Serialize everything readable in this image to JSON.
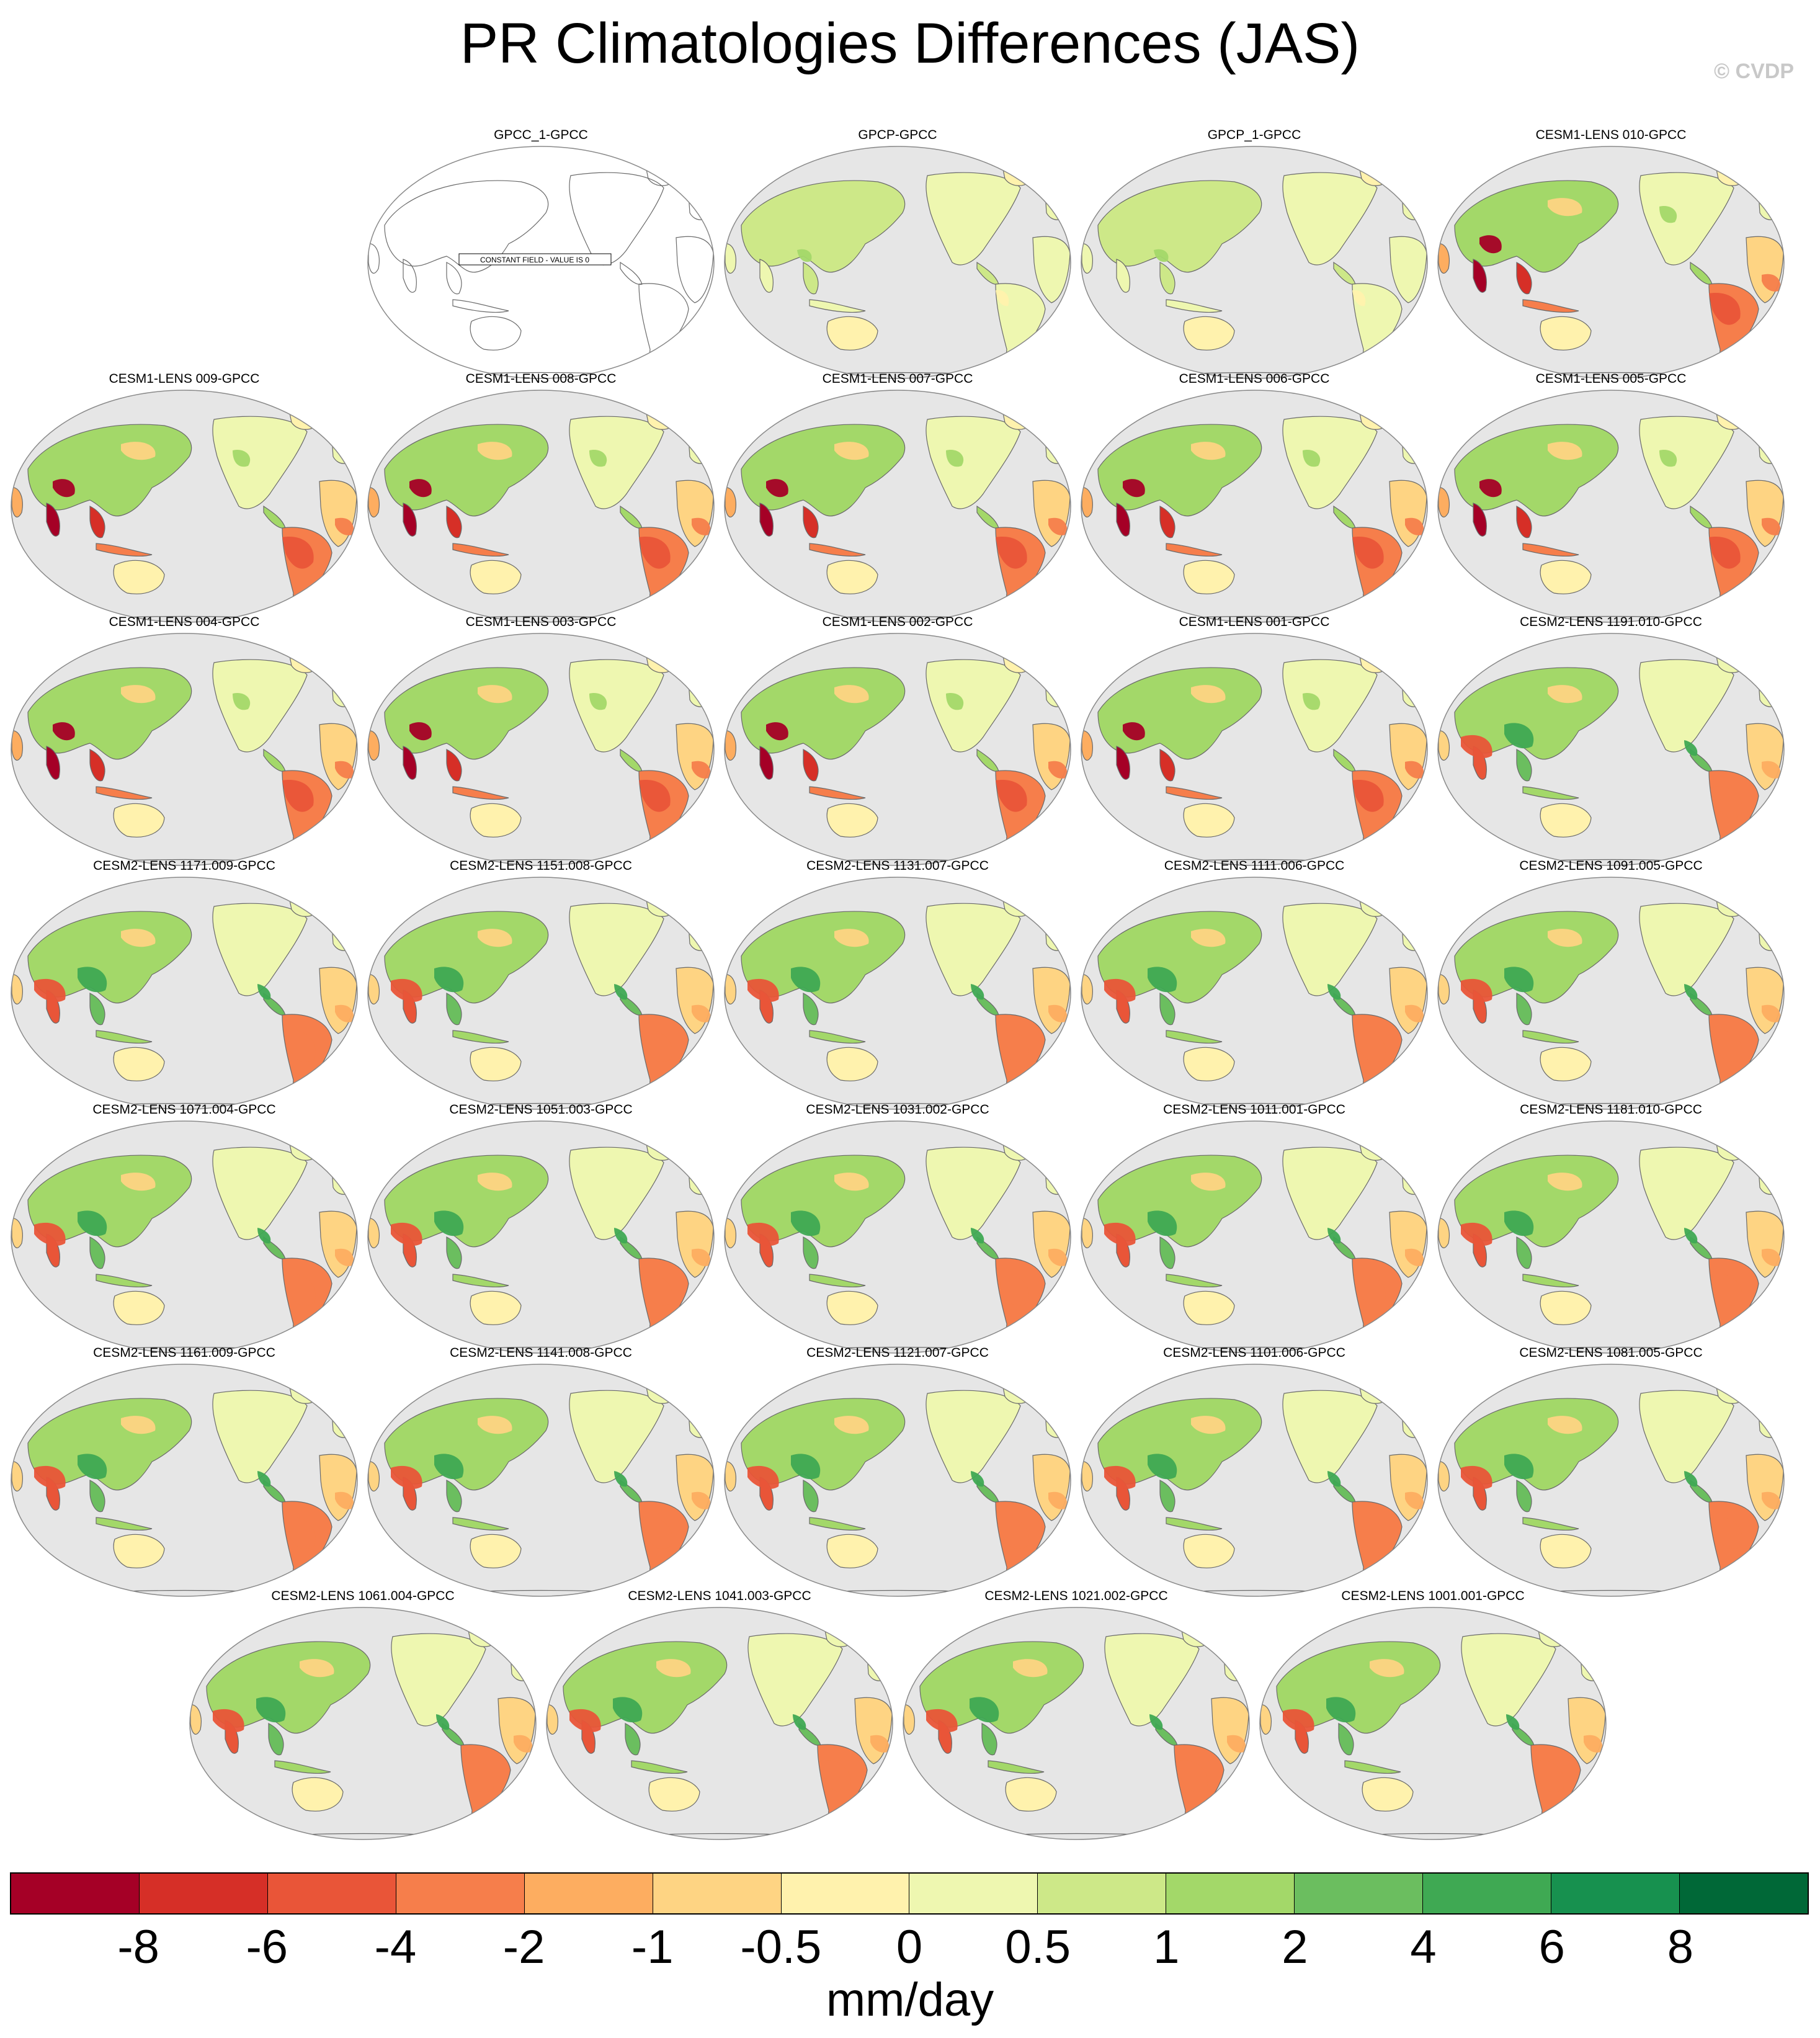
{
  "title": "PR Climatologies Differences (JAS)",
  "copyright": "© CVDP",
  "panels": [
    {
      "title": "GPCC_1-GPCC",
      "constant": true,
      "constant_label": "CONSTANT FIELD - VALUE IS 0"
    },
    {
      "title": "GPCP-GPCC",
      "style": "obs"
    },
    {
      "title": "GPCP_1-GPCC",
      "style": "obs"
    },
    {
      "title": "CESM1-LENS 010-GPCC",
      "style": "cesm1"
    },
    {
      "title": "CESM1-LENS 009-GPCC",
      "style": "cesm1"
    },
    {
      "title": "CESM1-LENS 008-GPCC",
      "style": "cesm1"
    },
    {
      "title": "CESM1-LENS 007-GPCC",
      "style": "cesm1"
    },
    {
      "title": "CESM1-LENS 006-GPCC",
      "style": "cesm1"
    },
    {
      "title": "CESM1-LENS 005-GPCC",
      "style": "cesm1"
    },
    {
      "title": "CESM1-LENS 004-GPCC",
      "style": "cesm1"
    },
    {
      "title": "CESM1-LENS 003-GPCC",
      "style": "cesm1"
    },
    {
      "title": "CESM1-LENS 002-GPCC",
      "style": "cesm1"
    },
    {
      "title": "CESM1-LENS 001-GPCC",
      "style": "cesm1"
    },
    {
      "title": "CESM2-LENS 1191.010-GPCC",
      "style": "cesm2"
    },
    {
      "title": "CESM2-LENS 1171.009-GPCC",
      "style": "cesm2"
    },
    {
      "title": "CESM2-LENS 1151.008-GPCC",
      "style": "cesm2"
    },
    {
      "title": "CESM2-LENS 1131.007-GPCC",
      "style": "cesm2"
    },
    {
      "title": "CESM2-LENS 1111.006-GPCC",
      "style": "cesm2"
    },
    {
      "title": "CESM2-LENS 1091.005-GPCC",
      "style": "cesm2"
    },
    {
      "title": "CESM2-LENS 1071.004-GPCC",
      "style": "cesm2"
    },
    {
      "title": "CESM2-LENS 1051.003-GPCC",
      "style": "cesm2"
    },
    {
      "title": "CESM2-LENS 1031.002-GPCC",
      "style": "cesm2"
    },
    {
      "title": "CESM2-LENS 1011.001-GPCC",
      "style": "cesm2"
    },
    {
      "title": "CESM2-LENS 1181.010-GPCC",
      "style": "cesm2"
    },
    {
      "title": "CESM2-LENS 1161.009-GPCC",
      "style": "cesm2"
    },
    {
      "title": "CESM2-LENS 1141.008-GPCC",
      "style": "cesm2"
    },
    {
      "title": "CESM2-LENS 1121.007-GPCC",
      "style": "cesm2"
    },
    {
      "title": "CESM2-LENS 1101.006-GPCC",
      "style": "cesm2"
    },
    {
      "title": "CESM2-LENS 1081.005-GPCC",
      "style": "cesm2"
    },
    {
      "title": "CESM2-LENS 1061.004-GPCC",
      "style": "cesm2"
    },
    {
      "title": "CESM2-LENS 1041.003-GPCC",
      "style": "cesm2"
    },
    {
      "title": "CESM2-LENS 1021.002-GPCC",
      "style": "cesm2"
    },
    {
      "title": "CESM2-LENS 1001.001-GPCC",
      "style": "cesm2"
    }
  ],
  "colorbar": {
    "colors": [
      "#a50026",
      "#d62f27",
      "#e95538",
      "#f67e4b",
      "#fdad60",
      "#fed483",
      "#fff2ad",
      "#eef7b0",
      "#cde888",
      "#a3d869",
      "#6bbe5f",
      "#3fa953",
      "#17914f",
      "#006837"
    ],
    "ticks": [
      "-8",
      "-6",
      "-4",
      "-2",
      "-1",
      "-0.5",
      "0",
      "0.5",
      "1",
      "2",
      "4",
      "6",
      "8"
    ],
    "units": "mm/day"
  }
}
